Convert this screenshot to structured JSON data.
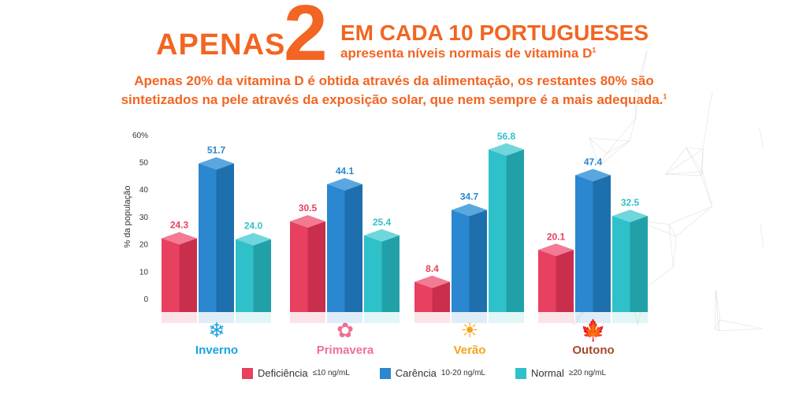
{
  "header": {
    "apenas": "APENAS",
    "number": "2",
    "line1": "EM CADA 10 PORTUGUESES",
    "line2": "apresenta níveis normais de vitamina D",
    "line2_sup": "1"
  },
  "subtitle": {
    "line1": "Apenas 20% da vitamina D é obtida através da alimentação, os restantes 80% são",
    "line2": "sintetizados na pele através da exposição solar, que nem sempre é a mais adequada.",
    "sup": "1"
  },
  "colors": {
    "accent": "#f26522",
    "deficiencia": "#e8405f",
    "carencia": "#2a87d0",
    "normal": "#2fc1c9",
    "inverno": "#1aa3e0",
    "primavera": "#ef6f94",
    "verao": "#f7a21b",
    "outono": "#a8472a"
  },
  "chart_data": {
    "type": "bar",
    "ylabel": "% da população",
    "ylim": [
      0,
      60
    ],
    "yticks": [
      "0",
      "10",
      "20",
      "30",
      "40",
      "50",
      "60%"
    ],
    "categories": [
      "Inverno",
      "Primavera",
      "Verão",
      "Outono"
    ],
    "category_icons": [
      "snowflake-icon",
      "flower-icon",
      "sun-icon",
      "maple-leaf-icon"
    ],
    "series": [
      {
        "name": "Deficiência",
        "range": "≤10 ng/mL",
        "values": [
          24.3,
          30.5,
          8.4,
          20.1
        ],
        "labels": [
          "24.3",
          "30.5",
          "8.4",
          "20.1"
        ]
      },
      {
        "name": "Carência",
        "range": "10-20 ng/mL",
        "values": [
          51.7,
          44.1,
          34.7,
          47.4
        ],
        "labels": [
          "51.7",
          "44.1",
          "34.7",
          "47.4"
        ]
      },
      {
        "name": "Normal",
        "range": "≥20 ng/mL",
        "values": [
          24.0,
          25.4,
          56.8,
          32.5
        ],
        "labels": [
          "24.0",
          "25.4",
          "56.8",
          "32.5"
        ]
      }
    ],
    "legend": "bottom"
  }
}
